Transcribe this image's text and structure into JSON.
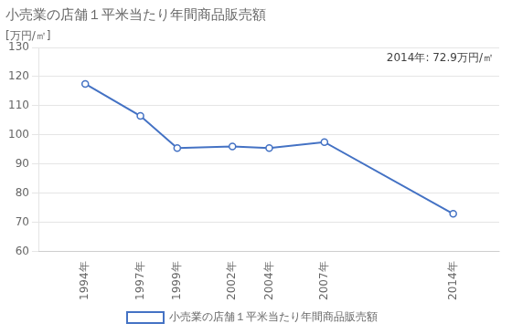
{
  "chart_data": {
    "type": "line",
    "title": "小売業の店舗１平米当たり年間商品販売額",
    "ylabel": "[万円/㎡]",
    "annotation": "2014年: 72.9万円/㎡",
    "x": [
      1994,
      1997,
      1999,
      2002,
      2004,
      2007,
      2014
    ],
    "series": [
      {
        "name": "小売業の店舗１平米当たり年間商品販売額",
        "color": "#4472C4",
        "marker": "circle",
        "values": [
          117.5,
          106.5,
          95.5,
          96.0,
          95.5,
          97.5,
          72.9
        ]
      }
    ],
    "xlim": [
      1991.5,
      2016.5
    ],
    "xticks": [
      {
        "value": 1994,
        "label": "1994年"
      },
      {
        "value": 1997,
        "label": "1997年"
      },
      {
        "value": 1999,
        "label": "1999年"
      },
      {
        "value": 2002,
        "label": "2002年"
      },
      {
        "value": 2004,
        "label": "2004年"
      },
      {
        "value": 2007,
        "label": "2007年"
      },
      {
        "value": 2014,
        "label": "2014年"
      }
    ],
    "ylim": [
      60,
      130
    ],
    "yticks": [
      60,
      70,
      80,
      90,
      100,
      110,
      120,
      130
    ],
    "grid": "y",
    "legend": "bottom"
  }
}
